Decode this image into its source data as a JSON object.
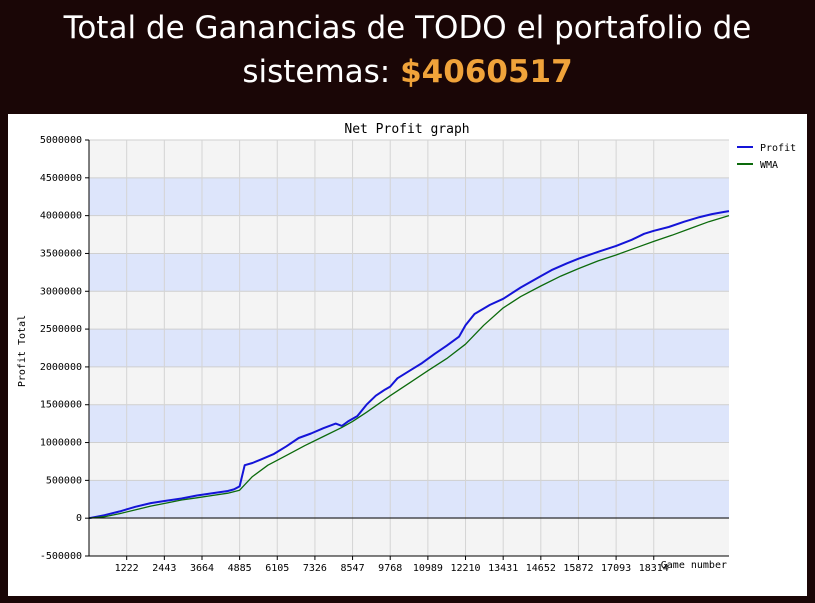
{
  "header": {
    "line1": "Total de Ganancias de TODO el portafolio de",
    "line2_prefix": "sistemas:",
    "amount": "$4060517",
    "amount_color": "#f0a33a"
  },
  "chart_data": {
    "type": "line",
    "title": "Net Profit graph",
    "xlabel": "Game number",
    "ylabel": "Profit Total",
    "xlim": [
      0,
      20754
    ],
    "ylim": [
      -500000,
      5000000
    ],
    "x_tick_labels": [
      "1222",
      "2443",
      "3664",
      "4885",
      "6105",
      "7326",
      "8547",
      "9768",
      "10989",
      "12210",
      "13431",
      "14652",
      "15872",
      "17093",
      "18314"
    ],
    "y_tick_labels": [
      "-500000",
      "0",
      "500000",
      "1000000",
      "1500000",
      "2000000",
      "2500000",
      "3000000",
      "3500000",
      "4000000",
      "4500000",
      "5000000"
    ],
    "grid": true,
    "band_colors": [
      "#f4f4f4",
      "#dde5fb"
    ],
    "legend_position": "right",
    "series": [
      {
        "name": "Profit",
        "color": "#1414d8",
        "x": [
          0,
          500,
          1000,
          1500,
          2000,
          2500,
          3000,
          3500,
          4000,
          4500,
          4700,
          4885,
          5050,
          5300,
          5600,
          6000,
          6400,
          6800,
          7200,
          7600,
          8000,
          8200,
          8400,
          8700,
          9000,
          9300,
          9600,
          9768,
          10000,
          10400,
          10800,
          11200,
          11600,
          12000,
          12210,
          12500,
          13000,
          13431,
          14000,
          14652,
          15000,
          15500,
          15872,
          16500,
          17093,
          17600,
          18000,
          18314,
          18800,
          19300,
          19800,
          20200,
          20600,
          20754
        ],
        "y": [
          0,
          40000,
          90000,
          150000,
          200000,
          230000,
          260000,
          300000,
          330000,
          360000,
          380000,
          420000,
          700000,
          730000,
          780000,
          850000,
          950000,
          1060000,
          1120000,
          1190000,
          1250000,
          1220000,
          1280000,
          1350000,
          1500000,
          1620000,
          1700000,
          1740000,
          1850000,
          1950000,
          2050000,
          2170000,
          2280000,
          2400000,
          2550000,
          2700000,
          2820000,
          2900000,
          3050000,
          3200000,
          3280000,
          3370000,
          3430000,
          3520000,
          3600000,
          3680000,
          3760000,
          3800000,
          3850000,
          3920000,
          3980000,
          4020000,
          4050000,
          4060517
        ]
      },
      {
        "name": "WMA",
        "color": "#0c6a0c",
        "x": [
          0,
          500,
          1000,
          1500,
          2000,
          2500,
          3000,
          3500,
          4000,
          4500,
          4885,
          5300,
          5800,
          6400,
          7000,
          7600,
          8200,
          8547,
          9000,
          9768,
          10400,
          10989,
          11600,
          12210,
          12800,
          13431,
          14000,
          14652,
          15300,
          15872,
          16500,
          17093,
          17700,
          18314,
          18900,
          19500,
          20100,
          20754
        ],
        "y": [
          0,
          20000,
          60000,
          110000,
          160000,
          200000,
          240000,
          270000,
          300000,
          330000,
          370000,
          550000,
          700000,
          830000,
          960000,
          1080000,
          1200000,
          1280000,
          1400000,
          1620000,
          1790000,
          1950000,
          2110000,
          2300000,
          2550000,
          2780000,
          2930000,
          3070000,
          3200000,
          3300000,
          3400000,
          3480000,
          3570000,
          3660000,
          3740000,
          3830000,
          3920000,
          4000000
        ]
      }
    ]
  }
}
